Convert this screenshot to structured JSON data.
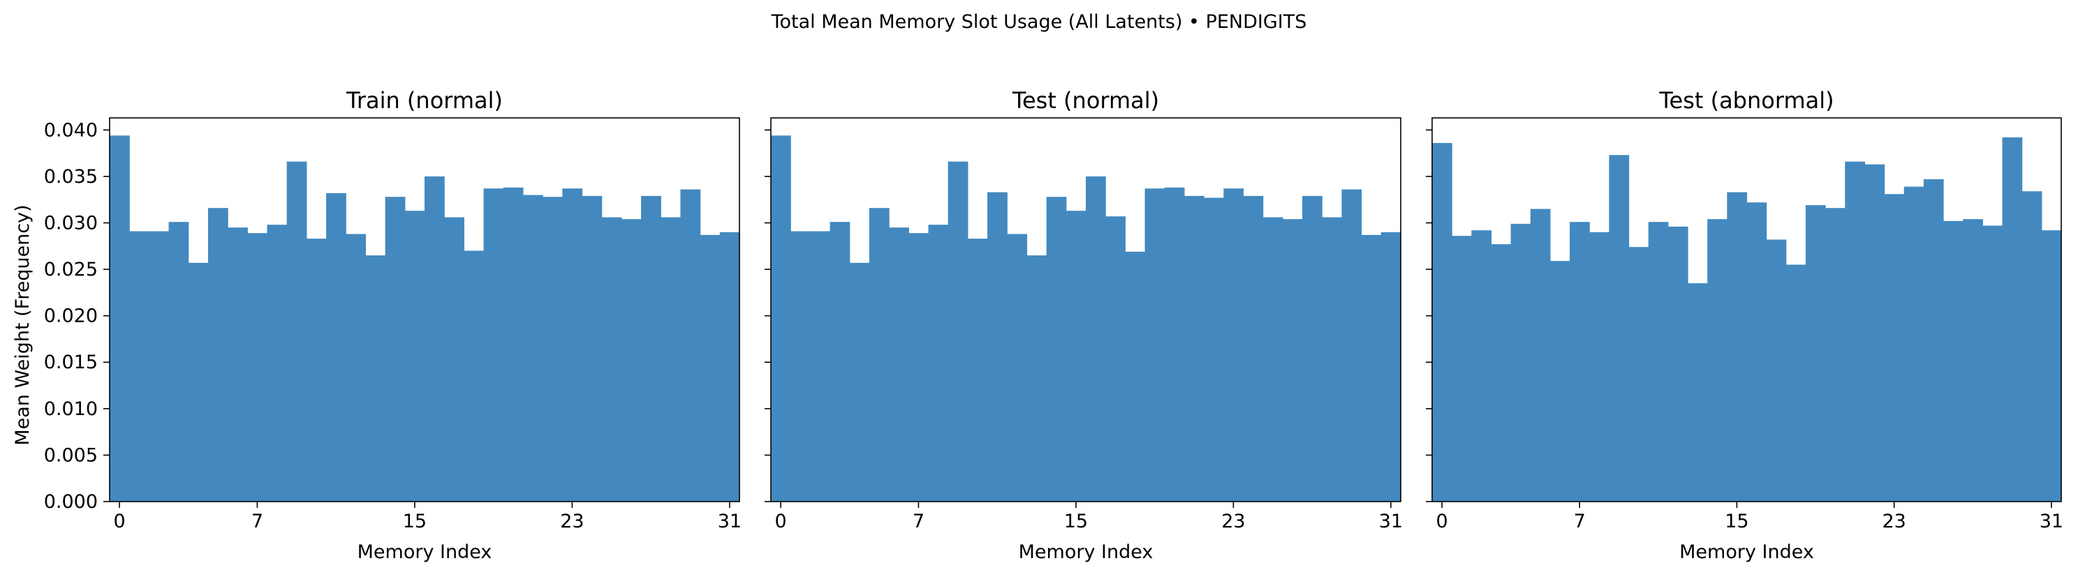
{
  "figure": {
    "title": "Total Mean Memory Slot Usage (All Latents) • PENDIGITS",
    "ylabel": "Mean Weight (Frequency)"
  },
  "style": {
    "bar_color": "#4389bf",
    "axis_color": "#000000",
    "background": "#ffffff"
  },
  "chart_data": [
    {
      "type": "bar",
      "title": "Train (normal)",
      "xlabel": "Memory Index",
      "ylabel": "Mean Weight (Frequency)",
      "categories": [
        0,
        1,
        2,
        3,
        4,
        5,
        6,
        7,
        8,
        9,
        10,
        11,
        12,
        13,
        14,
        15,
        16,
        17,
        18,
        19,
        20,
        21,
        22,
        23,
        24,
        25,
        26,
        27,
        28,
        29,
        30,
        31
      ],
      "values": [
        0.0394,
        0.0291,
        0.0291,
        0.0301,
        0.0257,
        0.0316,
        0.0295,
        0.0289,
        0.0298,
        0.0366,
        0.0283,
        0.0332,
        0.0288,
        0.0265,
        0.0328,
        0.0313,
        0.035,
        0.0306,
        0.027,
        0.0337,
        0.0338,
        0.033,
        0.0328,
        0.0337,
        0.0329,
        0.0306,
        0.0304,
        0.0329,
        0.0306,
        0.0336,
        0.0287,
        0.029
      ],
      "xticks": [
        0,
        7,
        15,
        23,
        31
      ],
      "xtick_labels": [
        "0",
        "7",
        "15",
        "23",
        "31"
      ],
      "xlim": [
        -0.5,
        31.5
      ],
      "ylim": [
        0,
        0.0413
      ],
      "yticks": [
        0.0,
        0.005,
        0.01,
        0.015,
        0.02,
        0.025,
        0.03,
        0.035,
        0.04
      ],
      "ytick_labels": [
        "0.000",
        "0.005",
        "0.010",
        "0.015",
        "0.020",
        "0.025",
        "0.030",
        "0.035",
        "0.040"
      ],
      "grid": false
    },
    {
      "type": "bar",
      "title": "Test (normal)",
      "xlabel": "Memory Index",
      "categories": [
        0,
        1,
        2,
        3,
        4,
        5,
        6,
        7,
        8,
        9,
        10,
        11,
        12,
        13,
        14,
        15,
        16,
        17,
        18,
        19,
        20,
        21,
        22,
        23,
        24,
        25,
        26,
        27,
        28,
        29,
        30,
        31
      ],
      "values": [
        0.0394,
        0.0291,
        0.0291,
        0.0301,
        0.0257,
        0.0316,
        0.0295,
        0.0289,
        0.0298,
        0.0366,
        0.0283,
        0.0333,
        0.0288,
        0.0265,
        0.0328,
        0.0313,
        0.035,
        0.0307,
        0.0269,
        0.0337,
        0.0338,
        0.0329,
        0.0327,
        0.0337,
        0.0329,
        0.0306,
        0.0304,
        0.0329,
        0.0306,
        0.0336,
        0.0287,
        0.029
      ],
      "xticks": [
        0,
        7,
        15,
        23,
        31
      ],
      "xtick_labels": [
        "0",
        "7",
        "15",
        "23",
        "31"
      ],
      "xlim": [
        -0.5,
        31.5
      ],
      "ylim": [
        0,
        0.0413
      ],
      "yticks": [
        0.0,
        0.005,
        0.01,
        0.015,
        0.02,
        0.025,
        0.03,
        0.035,
        0.04
      ],
      "grid": false
    },
    {
      "type": "bar",
      "title": "Test (abnormal)",
      "xlabel": "Memory Index",
      "categories": [
        0,
        1,
        2,
        3,
        4,
        5,
        6,
        7,
        8,
        9,
        10,
        11,
        12,
        13,
        14,
        15,
        16,
        17,
        18,
        19,
        20,
        21,
        22,
        23,
        24,
        25,
        26,
        27,
        28,
        29,
        30,
        31
      ],
      "values": [
        0.0386,
        0.0286,
        0.0292,
        0.0277,
        0.0299,
        0.0315,
        0.0259,
        0.0301,
        0.029,
        0.0373,
        0.0274,
        0.0301,
        0.0296,
        0.0235,
        0.0304,
        0.0333,
        0.0322,
        0.0282,
        0.0255,
        0.0319,
        0.0316,
        0.0366,
        0.0363,
        0.0331,
        0.0339,
        0.0347,
        0.0302,
        0.0304,
        0.0297,
        0.0392,
        0.0334,
        0.0292
      ],
      "xticks": [
        0,
        7,
        15,
        23,
        31
      ],
      "xtick_labels": [
        "0",
        "7",
        "15",
        "23",
        "31"
      ],
      "xlim": [
        -0.5,
        31.5
      ],
      "ylim": [
        0,
        0.0413
      ],
      "yticks": [
        0.0,
        0.005,
        0.01,
        0.015,
        0.02,
        0.025,
        0.03,
        0.035,
        0.04
      ],
      "grid": false
    }
  ]
}
